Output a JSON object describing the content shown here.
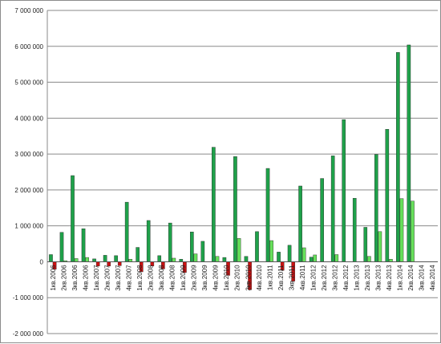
{
  "chart_data": {
    "type": "bar",
    "title": "",
    "xlabel": "",
    "ylabel": "",
    "ylim": [
      -2000000,
      7000000
    ],
    "grid": true,
    "legend": "none",
    "y_tick_labels": [
      "-2 000 000",
      "-1 000 000",
      "0",
      "1 000 000",
      "2 000 000",
      "3 000 000",
      "4 000 000",
      "5 000 000",
      "6 000 000",
      "7 000 000"
    ],
    "categories": [
      "1кв.2006",
      "2кв.2006",
      "3кв.2006",
      "4кв.2006",
      "1кв.2007",
      "2кв.2007",
      "3кв.2007",
      "4кв.2007",
      "1кв.2008",
      "2кв.2008",
      "3кв.2008",
      "4кв.2008",
      "1кв.2009",
      "2кв.2009",
      "3кв.2009",
      "4кв.2009",
      "1кв.2010",
      "2кв.2010",
      "3кв.2010",
      "4кв.2010",
      "1кв.2011",
      "2кв.2011",
      "3кв.2011",
      "4кв.2011",
      "1кв.2012",
      "2кв.2012",
      "3кв.2012",
      "4кв.2012",
      "1кв.2013",
      "2кв.2013",
      "3кв.2013",
      "4кв.2013",
      "1кв.2014",
      "2кв.2014",
      "3кв.2014",
      "4кв.2014"
    ],
    "series": [
      {
        "color": "#1fa14a",
        "values": [
          200000,
          820000,
          2400000,
          920000,
          80000,
          180000,
          170000,
          1660000,
          400000,
          1150000,
          170000,
          1080000,
          70000,
          830000,
          570000,
          3190000,
          120000,
          2930000,
          150000,
          840000,
          2600000,
          270000,
          460000,
          2110000,
          130000,
          2320000,
          2950000,
          3960000,
          1770000,
          960000,
          2990000,
          3690000,
          5830000,
          6040000,
          0,
          0
        ]
      },
      {
        "color": "#66e05a",
        "values": [
          0,
          30000,
          90000,
          120000,
          0,
          0,
          0,
          70000,
          0,
          0,
          0,
          100000,
          0,
          220000,
          0,
          150000,
          0,
          650000,
          0,
          0,
          590000,
          0,
          0,
          390000,
          190000,
          0,
          200000,
          0,
          0,
          150000,
          840000,
          70000,
          1760000,
          1690000,
          0,
          0
        ]
      },
      {
        "color": "#cc1111",
        "values": [
          -210000,
          0,
          0,
          0,
          -120000,
          -120000,
          -110000,
          0,
          -280000,
          -120000,
          -200000,
          0,
          -300000,
          0,
          0,
          0,
          -380000,
          0,
          -780000,
          0,
          0,
          -240000,
          -540000,
          0,
          0,
          0,
          0,
          0,
          0,
          0,
          0,
          0,
          0,
          0,
          0,
          0
        ]
      }
    ]
  }
}
